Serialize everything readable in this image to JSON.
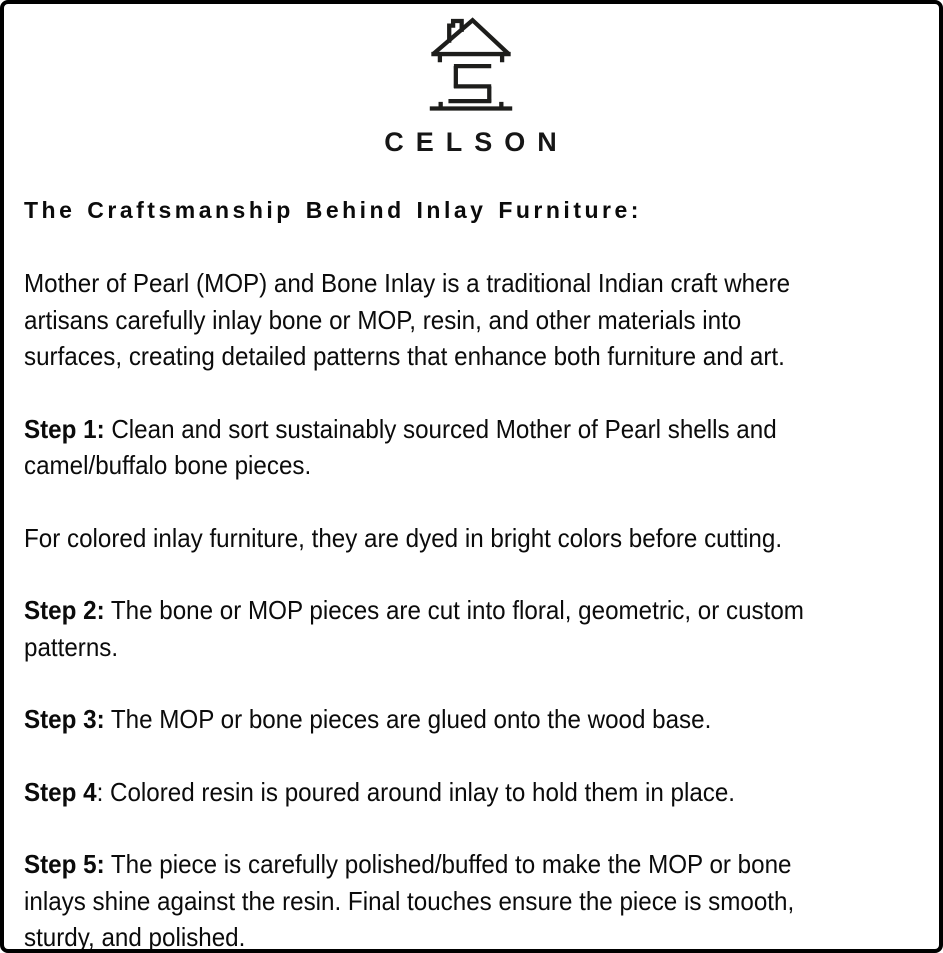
{
  "brand": {
    "name": "CELSON"
  },
  "heading": "The Craftsmanship Behind Inlay Furniture:",
  "paragraphs": [
    {
      "lead": "",
      "text": "Mother of Pearl (MOP) and Bone Inlay is a traditional Indian craft where\nartisans carefully inlay bone or MOP, resin, and other materials into\nsurfaces, creating detailed patterns that enhance both furniture and art."
    },
    {
      "lead": "Step 1:",
      "text": " Clean and sort sustainably sourced Mother of Pearl shells and\ncamel/buffalo bone pieces."
    },
    {
      "lead": "",
      "text": "For colored inlay furniture, they are dyed in bright colors before cutting."
    },
    {
      "lead": "Step 2:",
      "text": " The bone or MOP pieces are cut into floral, geometric, or custom\npatterns."
    },
    {
      "lead": "Step 3:",
      "text": " The MOP or bone pieces are glued onto the wood base."
    },
    {
      "lead": "Step 4",
      "text": ": Colored resin is poured around inlay to hold them in place."
    },
    {
      "lead": "Step 5:",
      "text": " The piece is carefully polished/buffed to make the MOP or bone\ninlays shine against the resin. Final touches ensure the piece is smooth,\nsturdy, and polished."
    }
  ],
  "colors": {
    "text": "#0b0b0b",
    "border": "#000000",
    "background": "#ffffff",
    "logo_stroke": "#1d1d1b"
  }
}
